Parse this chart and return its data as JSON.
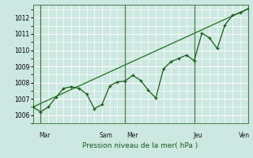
{
  "title": "",
  "xlabel": "Pression niveau de la mer( hPa )",
  "background_color": "#cce8e0",
  "grid_color": "#b0d8d0",
  "line_color": "#1a5c1a",
  "trend_color": "#2d7a2d",
  "vline_color": "#4a7a4a",
  "ylim": [
    1005.5,
    1012.8
  ],
  "xlim": [
    0,
    28
  ],
  "x_day_labels": [
    {
      "x": 1.5,
      "label": "Mar"
    },
    {
      "x": 9.5,
      "label": "Sam"
    },
    {
      "x": 13.0,
      "label": "Mer"
    },
    {
      "x": 21.5,
      "label": "Jeu"
    },
    {
      "x": 27.5,
      "label": "Ven"
    }
  ],
  "x_vlines": [
    1,
    12,
    21,
    28
  ],
  "pressure_data": [
    [
      0,
      1006.5
    ],
    [
      1,
      1006.2
    ],
    [
      2,
      1006.5
    ],
    [
      3,
      1007.1
    ],
    [
      4,
      1007.65
    ],
    [
      5,
      1007.75
    ],
    [
      6,
      1007.65
    ],
    [
      7,
      1007.3
    ],
    [
      8,
      1006.4
    ],
    [
      9,
      1006.65
    ],
    [
      10,
      1007.8
    ],
    [
      11,
      1008.05
    ],
    [
      12,
      1008.1
    ],
    [
      13,
      1008.45
    ],
    [
      14,
      1008.15
    ],
    [
      15,
      1007.55
    ],
    [
      16,
      1007.05
    ],
    [
      17,
      1008.85
    ],
    [
      18,
      1009.3
    ],
    [
      19,
      1009.5
    ],
    [
      20,
      1009.7
    ],
    [
      21,
      1009.35
    ],
    [
      22,
      1011.05
    ],
    [
      23,
      1010.75
    ],
    [
      24,
      1010.1
    ],
    [
      25,
      1011.55
    ],
    [
      26,
      1012.15
    ],
    [
      27,
      1012.3
    ],
    [
      28,
      1012.55
    ]
  ],
  "yticks": [
    1006,
    1007,
    1008,
    1009,
    1010,
    1011,
    1012
  ],
  "xticks_minor_step": 1,
  "yticks_minor_step": 0.5
}
